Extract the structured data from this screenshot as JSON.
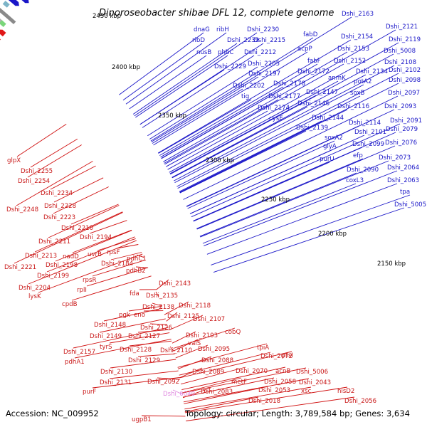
{
  "title": "Dinoroseobacter shibae DFL 12, complete genome",
  "footer": {
    "accession": "Accession: NC_009952",
    "summary": "Topology: circular; Length: 3,789,584 bp; Genes: 3,634"
  },
  "colors": {
    "plus_strand": "#1a16c8",
    "minus_strand": "#e01818",
    "backbone": "#888888",
    "rna_label": "#e08ae0"
  },
  "kbp_labels": [
    "2450 kbp",
    "2400 kbp",
    "2350 kbp",
    "2300 kbp",
    "2250 kbp",
    "2200 kbp",
    "2150 kbp"
  ],
  "blue_labels": [
    "Dshi_2163",
    "dnaG",
    "ribH",
    "Dshi_2230",
    "fabD",
    "Dshi_2121",
    "ribD",
    "Dshi_2239",
    "Dshi_2215",
    "Dshi_2154",
    "Dshi_2119",
    "nusB",
    "phbC",
    "Dshi_2212",
    "acpP",
    "Dshi_2153",
    "Dshi_5008",
    "Dshi_2229",
    "Dshi_2205",
    "fabF",
    "Dshi_2152",
    "Dshi_2108",
    "Dshi_2197",
    "Dshi_2172",
    "anmK",
    "Dshi_2134",
    "Dshi_2102",
    "Dshi_2202",
    "Dshi_2178",
    "potA2",
    "Dshi_2098",
    "tig",
    "Dshi_2177",
    "Dshi_2147",
    "soxB",
    "Dshi_2097",
    "Dshi_2174",
    "Dshi_2146",
    "Dshi_2116",
    "Dshi_2093",
    "cysE",
    "Dshi_2144",
    "Dshi_2114",
    "Dshi_2091",
    "Dshi_2139",
    "Dshi_2101",
    "Dshi_2079",
    "soxA2",
    "glyA",
    "Dshi_2099",
    "Dshi_2076",
    "efp",
    "Dshi_2073",
    "purU",
    "Dshi_2090",
    "Dshi_2064",
    "coxL3",
    "Dshi_2063",
    "tpa",
    "Dshi_5005"
  ],
  "red_labels": [
    "glpX",
    "Dshi_2255",
    "Dshi_2254",
    "Dshi_2234",
    "Dshi_2248",
    "Dshi_2228",
    "Dshi_2223",
    "Dshi_2210",
    "Dshi_2211",
    "Dshi_2194",
    "Dshi_2213",
    "nadD",
    "uvrB",
    "rpsF",
    "pdhC1",
    "Dshi_2221",
    "Dshi_2198",
    "Dshi_2184",
    "pdhB2",
    "Dshi_2199",
    "rpsR",
    "Dshi_2204",
    "rplI",
    "Dshi_2143",
    "lysK",
    "fda",
    "Dshi_2135",
    "cpdB",
    "Dshi_2138",
    "Dshi_2118",
    "pgk",
    "eno",
    "Dshi_2125",
    "Dshi_2107",
    "Dshi_2148",
    "Dshi_2126",
    "cobQ",
    "Dshi_2149",
    "Dshi_2127",
    "Dshi_2103",
    "tyrS",
    "valS",
    "tpiA",
    "Dshi_2157",
    "Dshi_2128",
    "Dshi_2110",
    "Dshi_2095",
    "pdhA1",
    "Dshi_2129",
    "Dshi_2088",
    "Dshi_2072",
    "ptsI",
    "Dshi_2130",
    "Dshi_2089",
    "Dshi_2070",
    "acnB",
    "Dshi_5006",
    "Dshi_2131",
    "Dshi_2092",
    "metF",
    "Dshi_2058",
    "Dshi_2043",
    "purF",
    "Dshi_2083",
    "Dshi_2053",
    "xsc",
    "hisD2",
    "Dshi_2018",
    "Dshi_2056",
    "ugpB1",
    "Dshi_2104"
  ],
  "pink_labels": [
    "Dshi_6040"
  ]
}
